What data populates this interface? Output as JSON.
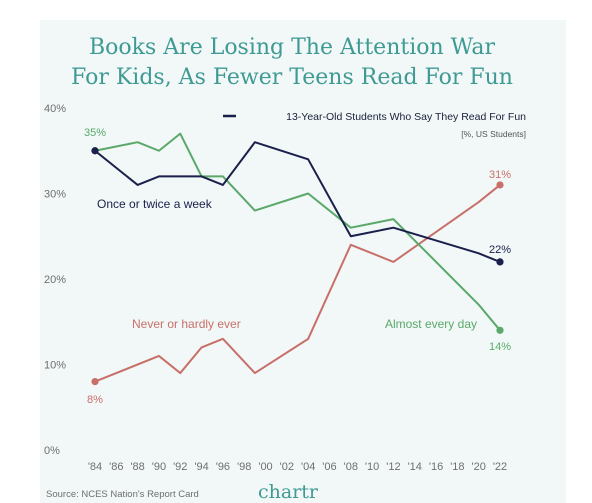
{
  "chart_data": {
    "type": "line",
    "title_line1": "Books Are Losing The Attention War",
    "title_line2": "For Kids, As Fewer Teens Read For Fun",
    "legend": {
      "label": "13-Year-Old Students Who Say They Read For Fun",
      "sub": "[%, US Students]"
    },
    "x_ticks": [
      "'84",
      "'86",
      "'88",
      "'90",
      "'92",
      "'94",
      "'96",
      "'98",
      "'00",
      "'02",
      "'04",
      "'06",
      "'08",
      "'10",
      "'12",
      "'14",
      "'16",
      "'18",
      "'20",
      "'22"
    ],
    "x_range": [
      1984,
      2022
    ],
    "y_ticks": [
      "0%",
      "10%",
      "20%",
      "30%",
      "40%"
    ],
    "ylim": [
      0,
      40
    ],
    "grid": false,
    "series": [
      {
        "name": "Once or twice a week",
        "color": "#1b1f4b",
        "x": [
          1984,
          1988,
          1990,
          1994,
          1996,
          1999,
          2004,
          2008,
          2012,
          2020,
          2022
        ],
        "values": [
          35,
          31,
          32,
          32,
          31,
          36,
          34,
          25,
          26,
          23,
          22
        ]
      },
      {
        "name": "Almost every day",
        "color": "#5aa86a",
        "x": [
          1984,
          1988,
          1990,
          1992,
          1994,
          1996,
          1999,
          2004,
          2008,
          2012,
          2020,
          2022
        ],
        "values": [
          35,
          36,
          35,
          37,
          32,
          32,
          28,
          30,
          26,
          27,
          17,
          14
        ]
      },
      {
        "name": "Never or hardly ever",
        "color": "#c96f6a",
        "x": [
          1984,
          1990,
          1992,
          1994,
          1996,
          1999,
          2004,
          2008,
          2012,
          2020,
          2022
        ],
        "values": [
          8,
          11,
          9,
          12,
          13,
          9,
          13,
          24,
          22,
          29,
          31
        ]
      }
    ],
    "end_labels": {
      "start_green": "35%",
      "start_red": "8%",
      "end_red": "31%",
      "end_navy": "22%",
      "end_green": "14%"
    },
    "source": "Source: NCES Nation's Report Card",
    "brand": "chartr"
  }
}
